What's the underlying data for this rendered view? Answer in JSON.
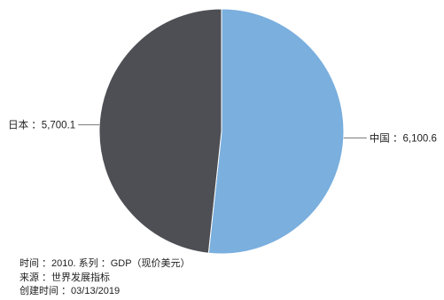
{
  "chart_data": {
    "type": "pie",
    "slices": [
      {
        "label": "中国",
        "value": 6100.6,
        "label_text": "中国 ：6,100.6",
        "color": "#7aafde"
      },
      {
        "label": "日本",
        "value": 5700.1,
        "label_text": "日本 ：5,700.1",
        "color": "#4d4f54"
      }
    ],
    "start_angle_deg": 0,
    "direction": "clockwise",
    "legend": "none"
  },
  "footer": {
    "line1": "时间 ：2010. 系列 ：GDP（现价美元）",
    "line2": "来源 ：世界发展指标",
    "line3": "创建时间 ：03/13/2019"
  }
}
